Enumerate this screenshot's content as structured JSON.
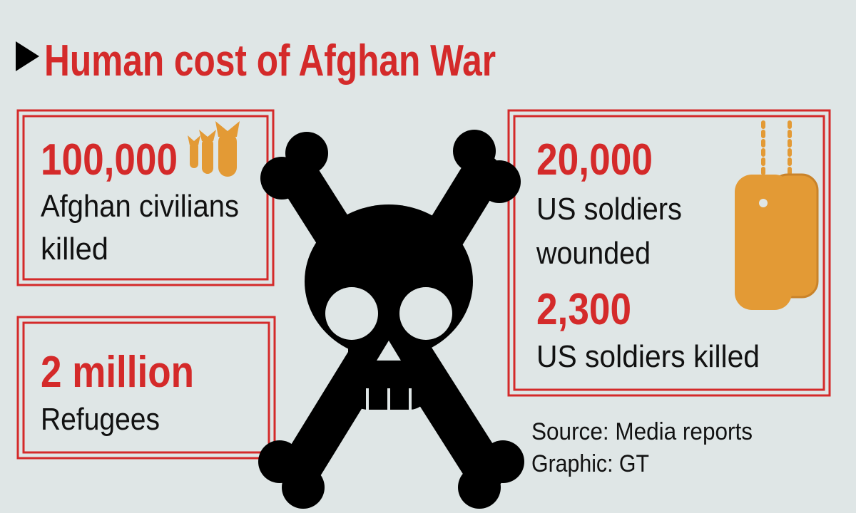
{
  "header": {
    "title": "Human cost of Afghan War"
  },
  "stats": [
    {
      "figure": "100,000",
      "lines": [
        "Afghan civilians",
        "killed"
      ]
    },
    {
      "figure": "2 million",
      "lines": [
        "Refugees"
      ]
    },
    {
      "figure": "20,000",
      "lines": [
        "US soldiers",
        "wounded"
      ]
    },
    {
      "figure": "2,300",
      "lines": [
        "US soldiers killed"
      ]
    }
  ],
  "footer": {
    "source": "Source: Media reports",
    "credit": "Graphic: GT"
  }
}
